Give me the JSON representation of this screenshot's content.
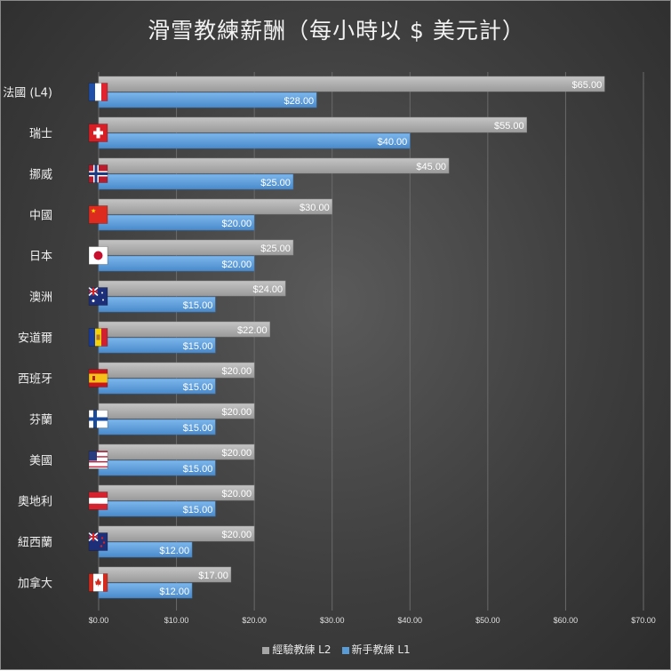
{
  "chart_data": {
    "type": "bar",
    "orientation": "horizontal",
    "title": "滑雪教練薪酬（每小時以 $ 美元計）",
    "categories": [
      "法國 (L4)",
      "瑞士",
      "挪威",
      "中國",
      "日本",
      "澳洲",
      "安道爾",
      "西班牙",
      "芬蘭",
      "美國",
      "奧地利",
      "紐西蘭",
      "加拿大"
    ],
    "flags": [
      "france",
      "switzerland",
      "norway",
      "china",
      "japan",
      "australia",
      "andorra",
      "spain",
      "finland",
      "usa",
      "austria",
      "new-zealand",
      "canada"
    ],
    "series": [
      {
        "name": "經驗教練 L2",
        "color": "#a6a6a6",
        "values": [
          65,
          55,
          45,
          30,
          25,
          24,
          22,
          20,
          20,
          20,
          20,
          20,
          17
        ],
        "labels": [
          "$65.00",
          "$55.00",
          "$45.00",
          "$30.00",
          "$25.00",
          "$24.00",
          "$22.00",
          "$20.00",
          "$20.00",
          "$20.00",
          "$20.00",
          "$20.00",
          "$17.00"
        ]
      },
      {
        "name": "新手教練 L1",
        "color": "#5b9bd5",
        "values": [
          28,
          40,
          25,
          20,
          20,
          15,
          15,
          15,
          15,
          15,
          15,
          12,
          12
        ],
        "labels": [
          "$28.00",
          "$40.00",
          "$25.00",
          "$20.00",
          "$20.00",
          "$15.00",
          "$15.00",
          "$15.00",
          "$15.00",
          "$15.00",
          "$15.00",
          "$12.00",
          "$12.00"
        ]
      }
    ],
    "xlim": [
      0,
      70
    ],
    "x_ticks": [
      0,
      10,
      20,
      30,
      40,
      50,
      60,
      70
    ],
    "x_tick_labels": [
      "$0.00",
      "$10.00",
      "$20.00",
      "$30.00",
      "$40.00",
      "$50.00",
      "$60.00",
      "$70.00"
    ],
    "grid": true,
    "legend_position": "bottom"
  }
}
